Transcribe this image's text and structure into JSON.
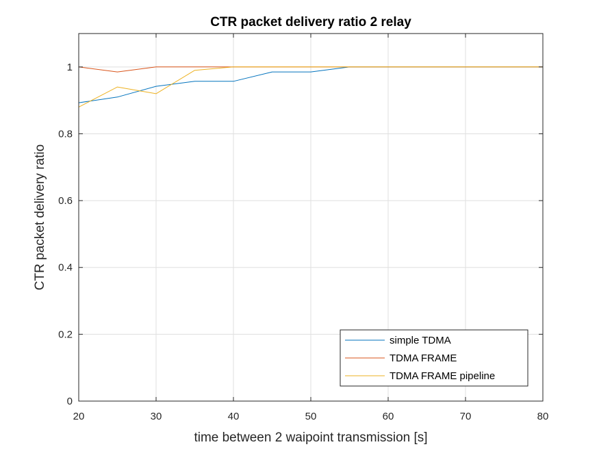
{
  "chart_data": {
    "type": "line",
    "title": "CTR packet delivery ratio 2 relay",
    "xlabel": "time between 2 waipoint transmission [s]",
    "ylabel": "CTR packet delivery ratio",
    "xlim": [
      20,
      80
    ],
    "ylim": [
      0,
      1.1
    ],
    "xticks": [
      20,
      30,
      40,
      50,
      60,
      70,
      80
    ],
    "xtick_labels": [
      "20",
      "30",
      "40",
      "50",
      "60",
      "70",
      "80"
    ],
    "yticks": [
      0,
      0.2,
      0.4,
      0.6,
      0.8,
      1
    ],
    "ytick_labels": [
      "0",
      "0.2",
      "0.4",
      "0.6",
      "0.8",
      "1"
    ],
    "grid": true,
    "legend_position": "bottom-right",
    "x": [
      20,
      25,
      30,
      35,
      40,
      45,
      50,
      55,
      60,
      65,
      70,
      75,
      80
    ],
    "series": [
      {
        "name": "simple TDMA",
        "color": "#0072BD",
        "values": [
          0.893,
          0.91,
          0.942,
          0.957,
          0.957,
          0.985,
          0.985,
          1,
          1,
          1,
          1,
          1,
          1
        ]
      },
      {
        "name": "TDMA FRAME",
        "color": "#D95319",
        "values": [
          1,
          0.985,
          1,
          1,
          1,
          1,
          1,
          1,
          1,
          1,
          1,
          1,
          1
        ]
      },
      {
        "name": "TDMA FRAME pipeline",
        "color": "#EDB120",
        "values": [
          0.88,
          0.94,
          0.92,
          0.99,
          1,
          1,
          1,
          1,
          1,
          1,
          1,
          1,
          1
        ]
      }
    ]
  }
}
